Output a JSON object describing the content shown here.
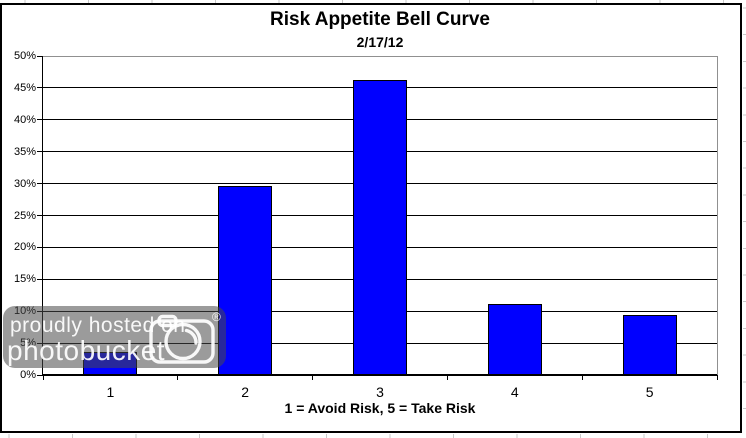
{
  "chart_data": {
    "type": "bar",
    "title": "Risk Appetite Bell Curve",
    "subtitle": "2/17/12",
    "categories": [
      "1",
      "2",
      "3",
      "4",
      "5"
    ],
    "values": [
      3.6,
      29.6,
      46.3,
      11.1,
      9.4
    ],
    "unit": "%",
    "xlabel": "1 = Avoid Risk, 5 = Take Risk",
    "ylabel": "",
    "ylim": [
      0,
      50
    ],
    "ytick_step": 5,
    "ytick_labels": [
      "0%",
      "5%",
      "10%",
      "15%",
      "20%",
      "25%",
      "30%",
      "35%",
      "40%",
      "45%",
      "50%"
    ],
    "grid": true,
    "legend": "none",
    "bar_color": "#0000ff",
    "bar_border_color": "#000000"
  },
  "watermark": {
    "line1": "proudly hosted on",
    "line2": "photobucket",
    "registered": "®",
    "icon": "camera-icon",
    "bg_color": "rgba(72,72,72,0.55)",
    "text_color": "#ffffff"
  }
}
